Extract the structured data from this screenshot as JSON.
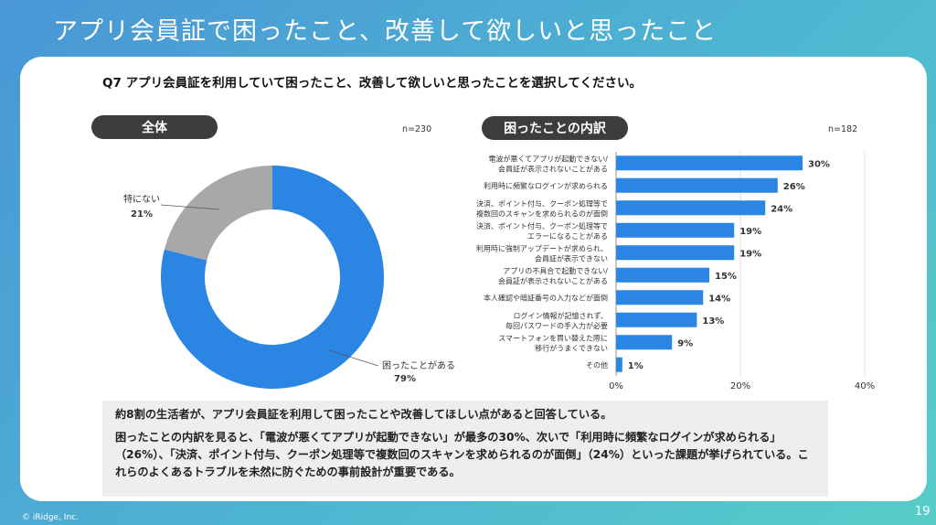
{
  "header": {
    "title": "アプリ会員証で困ったこと、改善して欲しいと思ったこと"
  },
  "question": "Q7 アプリ会員証を利用していて困ったこと、改善して欲しいと思ったことを選択してください。",
  "left_panel": {
    "pill": "全体",
    "n": "n=230"
  },
  "right_panel": {
    "pill": "困ったことの内訳",
    "n": "n=182"
  },
  "colors": {
    "primary": "#2a86e2",
    "secondary": "#a8a8a8",
    "pill": "#3d3d3d"
  },
  "chart_data": [
    {
      "type": "pie",
      "variant": "donut",
      "slices": [
        {
          "label": "困ったことがある",
          "value": 79,
          "value_label": "79%",
          "color": "#2a86e2"
        },
        {
          "label": "特にない",
          "value": 21,
          "value_label": "21%",
          "color": "#a8a8a8"
        }
      ]
    },
    {
      "type": "bar",
      "orientation": "horizontal",
      "categories": [
        "電波が悪くてアプリが起動できない/\n会員証が表示されないことがある",
        "利用時に頻繁なログインが求められる",
        "決済、ポイント付与、クーポン処理等で\n複数回のスキャンを求められるのが面倒",
        "決済、ポイント付与、クーポン処理等で\nエラーになることがある",
        "利用時に強制アップデートが求められ、\n会員証が表示できない",
        "アプリの不具合で起動できない/\n会員証が表示されないことがある",
        "本人確認や暗証番号の入力などが面倒",
        "ログイン情報が記憶されず、\n毎回パスワードの手入力が必要",
        "スマートフォンを買い替えた際に\n移行がうまくできない",
        "その他"
      ],
      "values": [
        30,
        26,
        24,
        19,
        19,
        15,
        14,
        13,
        9,
        1
      ],
      "value_labels": [
        "30%",
        "26%",
        "24%",
        "19%",
        "19%",
        "15%",
        "14%",
        "13%",
        "9%",
        "1%"
      ],
      "xlim": [
        0,
        40
      ],
      "xticks": [
        0,
        20,
        40
      ],
      "xtick_labels": [
        "0%",
        "20%",
        "40%"
      ],
      "grid": true,
      "color": "#2a86e2"
    }
  ],
  "summary": {
    "p1": "約8割の生活者が、アプリ会員証を利用して困ったことや改善してほしい点があると回答している。",
    "p2": "困ったことの内訳を見ると、「電波が悪くてアプリが起動できない」が最多の30%、次いで「利用時に頻繁なログインが求められる」（26%）、「決済、ポイント付与、クーポン処理等で複数回のスキャンを求められるのが面倒」（24%）といった課題が挙げられている。これらのよくあるトラブルを未然に防ぐための事前設計が重要である。"
  },
  "footer": {
    "copyright": "© iRidge, Inc.",
    "page": "19"
  }
}
